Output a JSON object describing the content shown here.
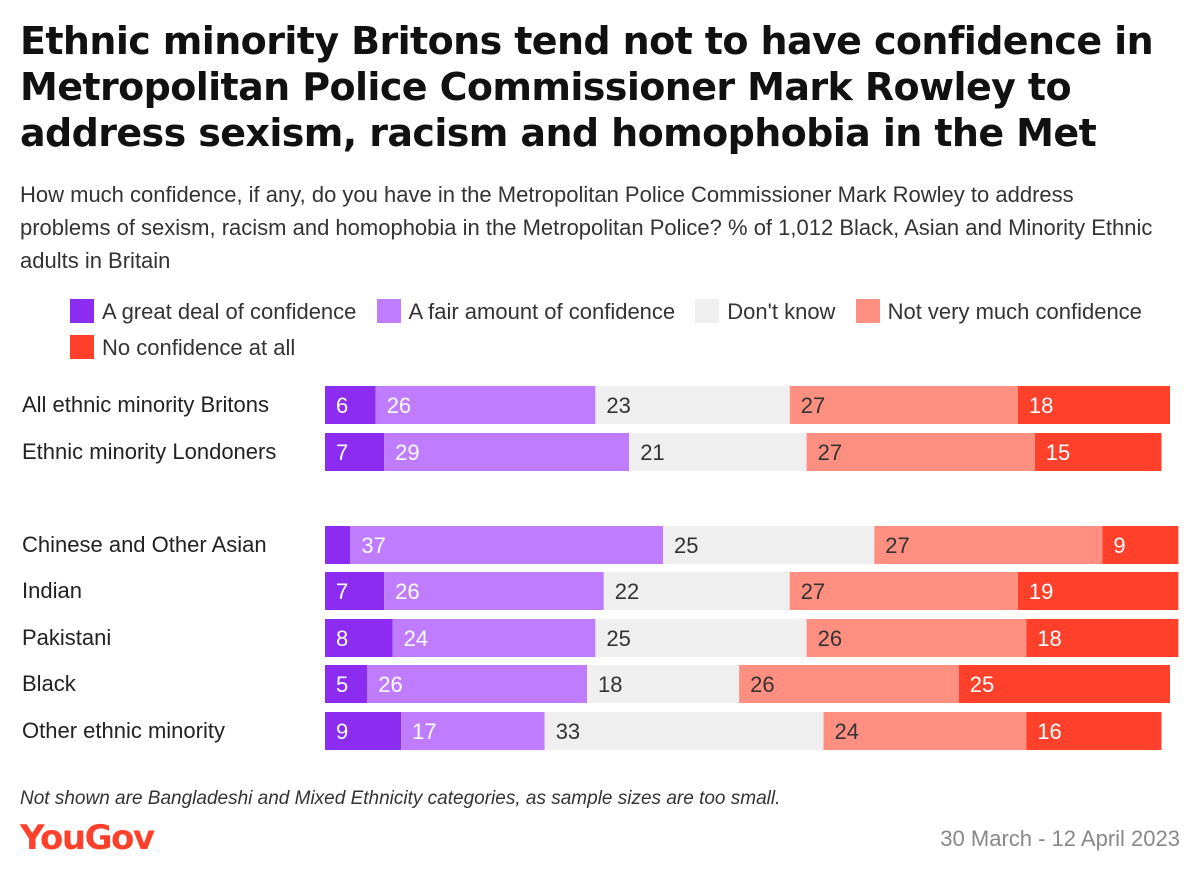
{
  "title": "Ethnic minority Britons tend not to have confidence in Metropolitan Police Commissioner Mark Rowley to address sexism, racism and homophobia in the Met",
  "subtitle": "How much confidence, if any, do you have in the Metropolitan Police Commissioner Mark Rowley to address problems of sexism, racism and homophobia in the Metropolitan Police? % of 1,012 Black, Asian and Minority Ethnic adults in Britain",
  "footnote": "Not shown are Bangladeshi and Mixed Ethnicity categories, as sample sizes are too small.",
  "source": "YouGov",
  "date": "30 March - 12 April 2023",
  "colors": {
    "great_deal": "#8b2cf0",
    "fair_amount": "#c07cff",
    "dont_know": "#efefef",
    "not_very_much": "#ff8f80",
    "none_at_all": "#ff412c",
    "label_light": "#ffffff",
    "label_dark": "#333333"
  },
  "chart_data": {
    "type": "bar",
    "orientation": "horizontal",
    "stacked": true,
    "xlim": [
      0,
      100
    ],
    "series": [
      {
        "name": "A great deal of confidence",
        "color_key": "great_deal",
        "values": [
          6,
          7,
          3,
          7,
          8,
          5,
          9
        ]
      },
      {
        "name": "A fair amount of confidence",
        "color_key": "fair_amount",
        "values": [
          26,
          29,
          37,
          26,
          24,
          26,
          17
        ]
      },
      {
        "name": "Don't know",
        "color_key": "dont_know",
        "values": [
          23,
          21,
          25,
          22,
          25,
          18,
          33
        ]
      },
      {
        "name": "Not very much confidence",
        "color_key": "not_very_much",
        "values": [
          27,
          27,
          27,
          27,
          26,
          26,
          24
        ]
      },
      {
        "name": "No confidence at all",
        "color_key": "none_at_all",
        "values": [
          18,
          15,
          9,
          19,
          18,
          25,
          16
        ]
      }
    ],
    "categories": [
      "All ethnic minority Britons",
      "Ethnic minority Londoners",
      "Chinese and Other Asian",
      "Indian",
      "Pakistani",
      "Black",
      "Other ethnic minority"
    ],
    "groups": [
      [
        0,
        1
      ],
      [
        2,
        3,
        4,
        5,
        6
      ]
    ],
    "label_min_value": 4,
    "legend_position": "top"
  }
}
